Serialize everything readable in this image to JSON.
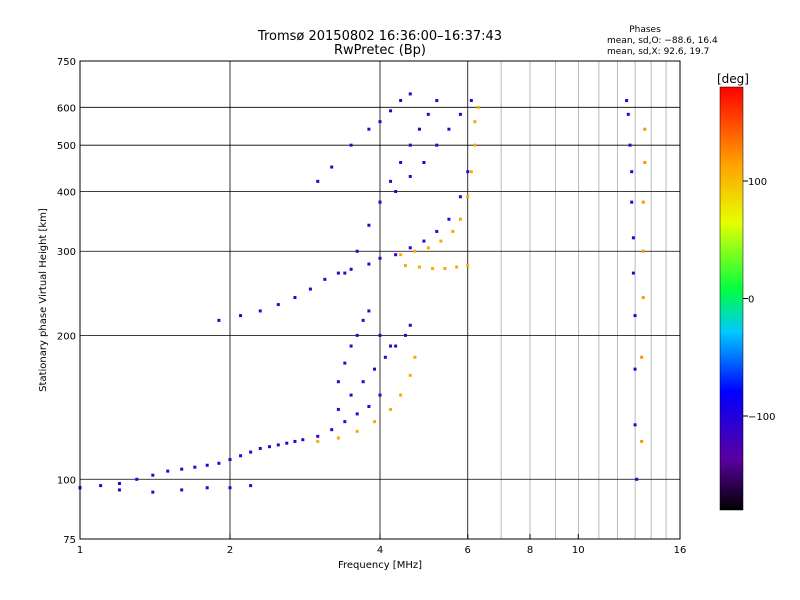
{
  "chart_data": {
    "type": "scatter",
    "title": "Tromsø 20150802 16:36:00–16:37:43",
    "subtitle": "RwPretec (Bp)",
    "xlabel": "Frequency [MHz]",
    "ylabel": "Stationary phase Virtual Height [km]",
    "x_scale": "log",
    "y_scale": "log",
    "xlim": [
      1,
      16
    ],
    "ylim": [
      75,
      750
    ],
    "x_ticks": [
      1,
      2,
      4,
      6,
      8,
      10,
      16
    ],
    "x_tick_labels": [
      "1",
      "2",
      "4",
      "6",
      "8",
      "10",
      "16"
    ],
    "x_major_grid": [
      2,
      4,
      6
    ],
    "x_minor_grid": [
      7,
      8,
      9,
      10,
      11,
      12,
      13,
      14,
      15
    ],
    "y_ticks": [
      75,
      100,
      200,
      300,
      400,
      500,
      600,
      750
    ],
    "y_tick_labels": [
      "75",
      "100",
      "200",
      "300",
      "400",
      "500",
      "600",
      "750"
    ],
    "grid": true,
    "phase_info": {
      "heading": "Phases",
      "line_o": "mean, sd,O: −88.6, 16.4",
      "line_x": "mean, sd,X:  92.6, 19.7"
    },
    "colorbar": {
      "label": "[deg]",
      "range": [
        -180,
        180
      ],
      "ticks": [
        100,
        0,
        -100
      ],
      "tick_labels": [
        "100",
        "0",
        "−100"
      ]
    },
    "traces": [
      {
        "name": "",
        "phase": -110,
        "points": [
          [
            1.0,
            96
          ],
          [
            1.1,
            97
          ],
          [
            1.2,
            98
          ],
          [
            1.3,
            100
          ],
          [
            1.4,
            102
          ],
          [
            1.5,
            104
          ],
          [
            1.6,
            105
          ],
          [
            1.7,
            106
          ],
          [
            1.8,
            107
          ],
          [
            1.9,
            108
          ],
          [
            2.0,
            110
          ],
          [
            2.1,
            112
          ],
          [
            2.2,
            114
          ],
          [
            2.3,
            116
          ],
          [
            2.4,
            117
          ],
          [
            2.5,
            118
          ],
          [
            2.6,
            119
          ],
          [
            2.7,
            120
          ],
          [
            2.8,
            121
          ],
          [
            3.0,
            123
          ],
          [
            3.2,
            127
          ],
          [
            3.4,
            132
          ],
          [
            3.6,
            137
          ],
          [
            3.8,
            142
          ],
          [
            4.0,
            150
          ]
        ]
      },
      {
        "name": "",
        "phase": -110,
        "points": [
          [
            1.0,
            96
          ],
          [
            1.2,
            95
          ],
          [
            1.4,
            94
          ],
          [
            1.6,
            95
          ],
          [
            1.8,
            96
          ],
          [
            2.0,
            96
          ],
          [
            2.2,
            97
          ]
        ]
      },
      {
        "name": "",
        "phase": -115,
        "points": [
          [
            3.3,
            140
          ],
          [
            3.5,
            150
          ],
          [
            3.7,
            160
          ],
          [
            3.9,
            170
          ],
          [
            4.1,
            180
          ],
          [
            4.3,
            190
          ],
          [
            4.5,
            200
          ],
          [
            4.6,
            210
          ]
        ]
      },
      {
        "name": "",
        "phase": -115,
        "points": [
          [
            3.3,
            160
          ],
          [
            3.4,
            175
          ],
          [
            3.5,
            190
          ],
          [
            3.6,
            200
          ],
          [
            3.7,
            215
          ],
          [
            3.8,
            225
          ],
          [
            4.0,
            200
          ],
          [
            4.2,
            190
          ]
        ]
      },
      {
        "name": "",
        "phase": 110,
        "points": [
          [
            3.0,
            120
          ],
          [
            3.3,
            122
          ],
          [
            3.6,
            126
          ],
          [
            3.9,
            132
          ],
          [
            4.2,
            140
          ],
          [
            4.4,
            150
          ],
          [
            4.6,
            165
          ],
          [
            4.7,
            180
          ]
        ]
      },
      {
        "name": "",
        "phase": -110,
        "points": [
          [
            1.9,
            215
          ],
          [
            2.1,
            220
          ],
          [
            2.3,
            225
          ],
          [
            2.5,
            232
          ],
          [
            2.7,
            240
          ],
          [
            2.9,
            250
          ],
          [
            3.1,
            262
          ],
          [
            3.3,
            270
          ],
          [
            3.5,
            275
          ],
          [
            3.8,
            282
          ],
          [
            4.0,
            290
          ],
          [
            4.3,
            295
          ],
          [
            4.6,
            305
          ],
          [
            4.9,
            315
          ],
          [
            5.2,
            330
          ],
          [
            5.5,
            350
          ],
          [
            5.8,
            390
          ],
          [
            6.0,
            440
          ]
        ]
      },
      {
        "name": "",
        "phase": -110,
        "points": [
          [
            3.4,
            270
          ],
          [
            3.6,
            300
          ],
          [
            3.8,
            340
          ],
          [
            4.0,
            380
          ],
          [
            4.2,
            420
          ],
          [
            4.4,
            460
          ],
          [
            4.6,
            500
          ],
          [
            4.8,
            540
          ],
          [
            5.0,
            580
          ],
          [
            5.2,
            620
          ]
        ]
      },
      {
        "name": "",
        "phase": -110,
        "points": [
          [
            3.0,
            420
          ],
          [
            3.2,
            450
          ],
          [
            3.5,
            500
          ],
          [
            3.8,
            540
          ],
          [
            4.0,
            560
          ],
          [
            4.2,
            590
          ],
          [
            4.4,
            620
          ],
          [
            4.6,
            640
          ]
        ]
      },
      {
        "name": "",
        "phase": -110,
        "points": [
          [
            4.0,
            380
          ],
          [
            4.3,
            400
          ],
          [
            4.6,
            430
          ],
          [
            4.9,
            460
          ],
          [
            5.2,
            500
          ],
          [
            5.5,
            540
          ],
          [
            5.8,
            580
          ],
          [
            6.1,
            620
          ]
        ]
      },
      {
        "name": "",
        "phase": 110,
        "points": [
          [
            4.4,
            295
          ],
          [
            4.7,
            300
          ],
          [
            5.0,
            305
          ],
          [
            5.3,
            315
          ],
          [
            5.6,
            330
          ],
          [
            5.8,
            350
          ],
          [
            6.0,
            390
          ],
          [
            6.1,
            440
          ],
          [
            6.2,
            500
          ],
          [
            6.2,
            560
          ],
          [
            6.3,
            600
          ]
        ]
      },
      {
        "name": "",
        "phase": 110,
        "points": [
          [
            4.5,
            280
          ],
          [
            4.8,
            278
          ],
          [
            5.1,
            276
          ],
          [
            5.4,
            276
          ],
          [
            5.7,
            278
          ],
          [
            6.0,
            280
          ]
        ]
      },
      {
        "name": "",
        "phase": -110,
        "points": [
          [
            12.5,
            620
          ],
          [
            12.6,
            580
          ],
          [
            12.7,
            500
          ],
          [
            12.8,
            440
          ],
          [
            12.8,
            380
          ],
          [
            12.9,
            320
          ],
          [
            12.9,
            270
          ],
          [
            13.0,
            220
          ],
          [
            13.0,
            170
          ],
          [
            13.0,
            130
          ],
          [
            13.1,
            100
          ]
        ]
      },
      {
        "name": "",
        "phase": 120,
        "points": [
          [
            13.4,
            120
          ],
          [
            13.4,
            180
          ],
          [
            13.5,
            240
          ],
          [
            13.5,
            300
          ],
          [
            13.5,
            380
          ],
          [
            13.6,
            460
          ],
          [
            13.6,
            540
          ]
        ]
      }
    ]
  }
}
